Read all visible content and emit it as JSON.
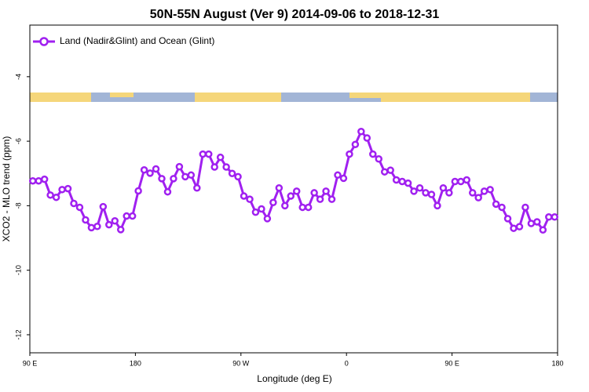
{
  "chart_data": {
    "type": "line",
    "title": "50N-55N August (Ver 9)   2014-09-06 to 2018-12-31",
    "x_label": "Longitude (deg E)",
    "y_label": "XCO2 - MLO trend (ppm)",
    "x": [
      92.5,
      97.5,
      102.5,
      107.5,
      112.5,
      117.5,
      122.5,
      127.5,
      132.5,
      137.5,
      142.5,
      147.5,
      152.5,
      157.5,
      162.5,
      167.5,
      172.5,
      177.5,
      182.5,
      187.5,
      192.5,
      197.5,
      202.5,
      207.5,
      212.5,
      217.5,
      222.5,
      227.5,
      232.5,
      237.5,
      242.5,
      247.5,
      252.5,
      257.5,
      262.5,
      267.5,
      272.5,
      277.5,
      282.5,
      287.5,
      292.5,
      297.5,
      302.5,
      307.5,
      312.5,
      317.5,
      322.5,
      327.5,
      332.5,
      337.5,
      342.5,
      347.5,
      352.5,
      357.5,
      362.5,
      367.5,
      372.5,
      377.5,
      382.5,
      387.5,
      392.5,
      397.5,
      402.5,
      407.5,
      412.5,
      417.5,
      422.5,
      427.5,
      432.5,
      437.5,
      442.5,
      447.5,
      452.5,
      457.5,
      462.5,
      467.5,
      472.5,
      477.5,
      482.5,
      487.5,
      492.5,
      497.5,
      502.5,
      507.5,
      512.5,
      517.5,
      522.5,
      527.5,
      532.5,
      537.5
    ],
    "series": [
      {
        "name": "Land (Nadir&Glint) and Ocean (Glint)",
        "color": "#a020f0",
        "values": [
          -7.23,
          -7.23,
          -7.18,
          -7.67,
          -7.74,
          -7.5,
          -7.47,
          -7.93,
          -8.05,
          -8.44,
          -8.68,
          -8.64,
          -8.03,
          -8.59,
          -8.47,
          -8.74,
          -8.32,
          -8.32,
          -7.54,
          -6.89,
          -6.99,
          -6.86,
          -7.16,
          -7.57,
          -7.16,
          -6.79,
          -7.1,
          -7.05,
          -7.45,
          -6.4,
          -6.4,
          -6.8,
          -6.5,
          -6.8,
          -7.0,
          -7.1,
          -7.7,
          -7.8,
          -8.2,
          -8.1,
          -8.4,
          -7.9,
          -7.45,
          -8.0,
          -7.7,
          -7.55,
          -8.05,
          -8.05,
          -7.6,
          -7.8,
          -7.55,
          -7.8,
          -7.05,
          -7.15,
          -6.4,
          -6.1,
          -5.7,
          -5.9,
          -6.4,
          -6.55,
          -6.95,
          -6.9,
          -7.2,
          -7.25,
          -7.3,
          -7.55,
          -7.45,
          -7.6,
          -7.65,
          -8.0,
          -7.45,
          -7.6,
          -7.25,
          -7.25,
          -7.2,
          -7.6,
          -7.75,
          -7.55,
          -7.5,
          -7.95,
          -8.05,
          -8.4,
          -8.7,
          -8.65,
          -8.05,
          -8.55,
          -8.5,
          -8.75,
          -8.35,
          -8.35
        ]
      }
    ],
    "xlim": [
      90,
      540
    ],
    "xticks": [
      {
        "value": 90,
        "label": "90 E"
      },
      {
        "value": 180,
        "label": "180"
      },
      {
        "value": 270,
        "label": "90 W"
      },
      {
        "value": 360,
        "label": "0"
      },
      {
        "value": 450,
        "label": "90 E"
      },
      {
        "value": 540,
        "label": "180"
      }
    ],
    "ylim": [
      -12.56,
      -2.4
    ],
    "yticks": [
      -12,
      -10,
      -8,
      -6,
      -4
    ],
    "legend": "top-left"
  }
}
